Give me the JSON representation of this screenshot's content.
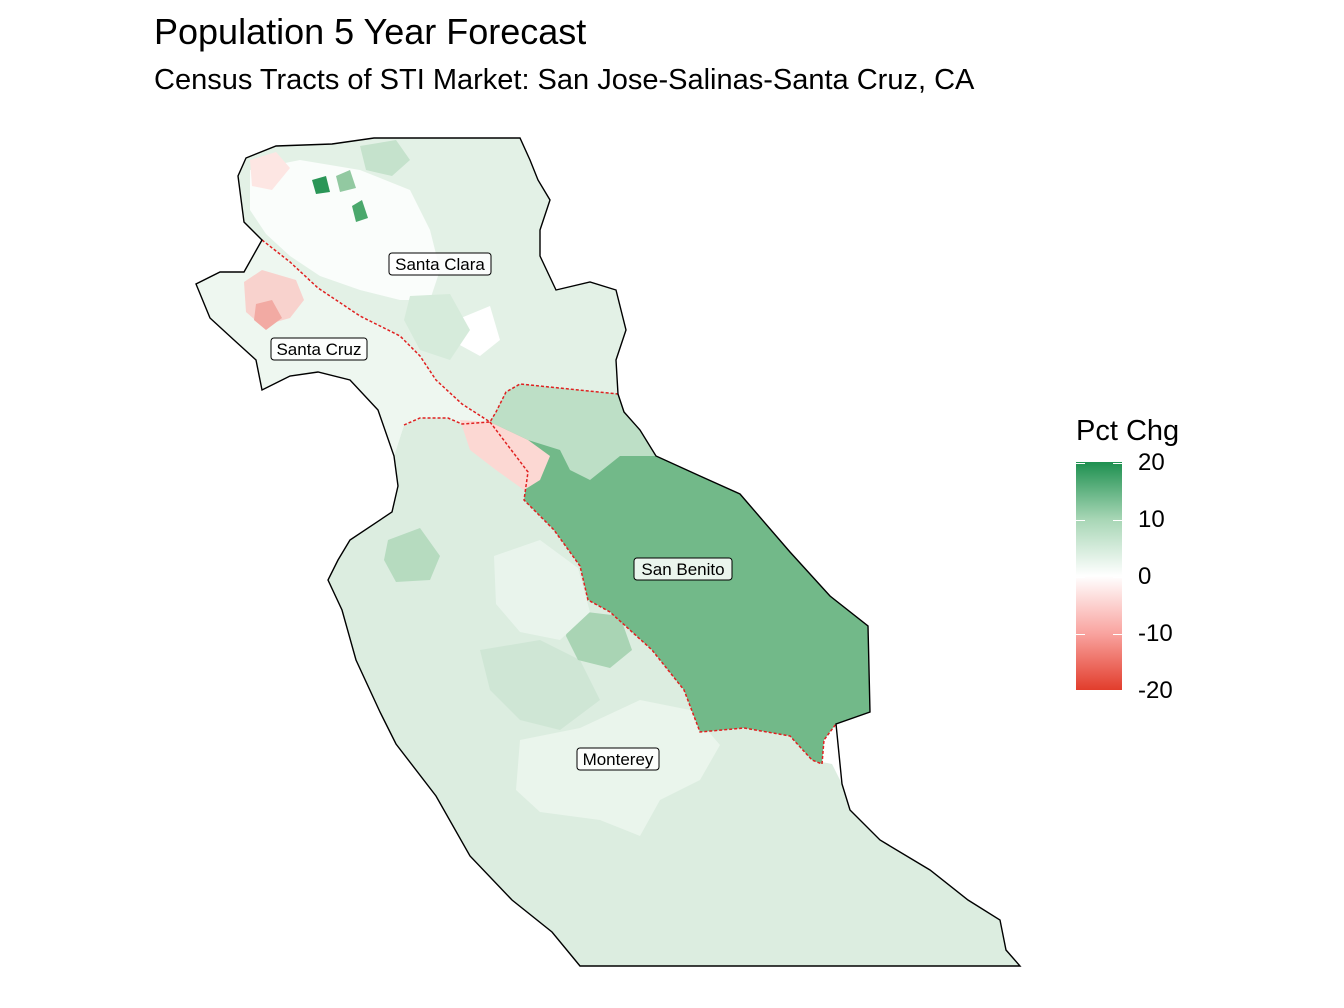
{
  "title": "Population 5 Year Forecast",
  "subtitle": "Census Tracts of STI Market: San Jose-Salinas-Santa Cruz, CA",
  "map": {
    "counties": [
      {
        "name": "Santa Clara",
        "label": "Santa Clara",
        "fill": "#e3f1e6"
      },
      {
        "name": "Santa Cruz",
        "label": "Santa Cruz",
        "fill": "#eef7f0"
      },
      {
        "name": "San Benito",
        "label": "San Benito",
        "fill": "#72b989"
      },
      {
        "name": "Monterey",
        "label": "Monterey",
        "fill": "#dcede0"
      }
    ],
    "county_border_color": "#e02020",
    "outline_color": "#000000"
  },
  "legend": {
    "title": "Pct Chg",
    "ticks": [
      "20",
      "10",
      "0",
      "-10",
      "-20"
    ],
    "range": [
      -20,
      20
    ],
    "colors": {
      "high": "#1e9050",
      "mid": "#ffffff",
      "low": "#e23d2c"
    }
  }
}
